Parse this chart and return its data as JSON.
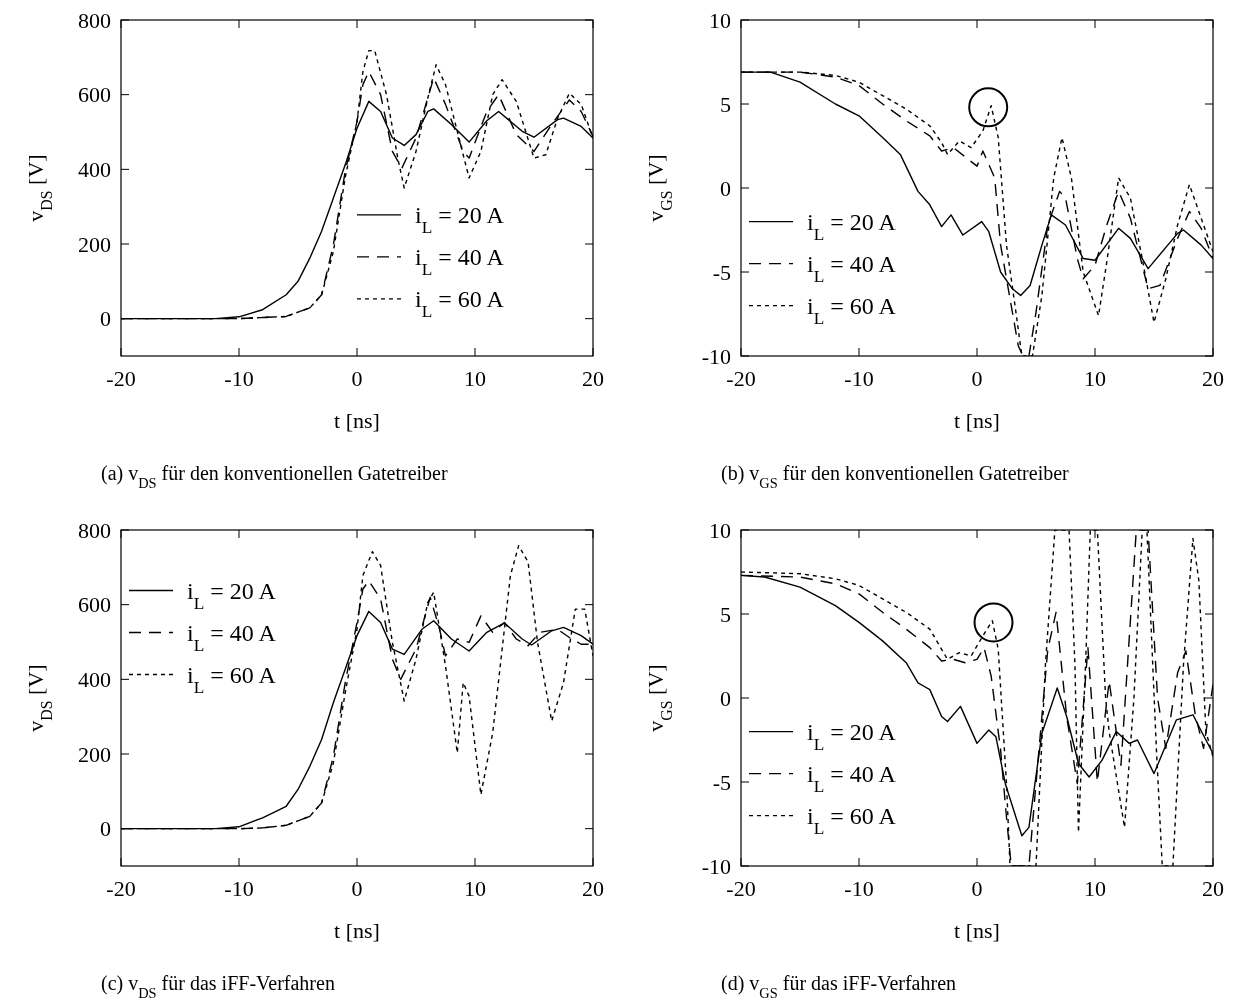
{
  "chart_data": [
    {
      "type": "line",
      "xlabel": "t [ns]",
      "ylabel": "v$_{DS}$ [V]",
      "annotations": [
        "(a) v$_{DS}$ für den konventionellen Gatetreiber"
      ],
      "xlim": [
        -20,
        20
      ],
      "xticks": [
        -20,
        -10,
        0,
        10,
        20
      ],
      "ylim": [
        -100,
        800
      ],
      "yticks": [
        0,
        200,
        400,
        600,
        800
      ],
      "legend": "right",
      "series": [
        {
          "name": "i$_{L}$ = 20 A",
          "color": "#000000",
          "line_style": "solid",
          "x": [
            -20,
            -12,
            -10,
            -8,
            -6,
            -5,
            -4,
            -3,
            -2,
            -1,
            0,
            1,
            2,
            3,
            4,
            5,
            6,
            6.5,
            8,
            9.5,
            11,
            12,
            14,
            15,
            17,
            17.5,
            19,
            20
          ],
          "values": [
            0,
            0,
            5,
            24,
            64,
            100,
            162,
            234,
            323,
            412,
            510,
            582,
            555,
            484,
            464,
            493,
            555,
            562,
            520,
            473,
            530,
            555,
            502,
            486,
            533,
            537,
            515,
            484
          ]
        },
        {
          "name": "i$_{L}$ = 40 A",
          "color": "#000000",
          "line_style": "dashed",
          "x": [
            -20,
            -10,
            -8,
            -6,
            -4,
            -3,
            -2,
            -1,
            0,
            0.5,
            1,
            2,
            3,
            3.8,
            5,
            6.5,
            7.5,
            9,
            9.5,
            11,
            12,
            13.5,
            15,
            16.5,
            18,
            19,
            20
          ],
          "values": [
            0,
            0,
            3,
            6,
            29,
            64,
            198,
            395,
            528,
            627,
            662,
            600,
            448,
            403,
            484,
            645,
            574,
            448,
            430,
            555,
            600,
            493,
            448,
            520,
            586,
            555,
            488
          ]
        },
        {
          "name": "i$_{L}$ = 60 A",
          "color": "#000000",
          "line_style": "dotted",
          "x": [
            -20,
            -10,
            -8,
            -6,
            -4,
            -3,
            -2,
            -1,
            0,
            0.5,
            1,
            1.5,
            2.5,
            3.5,
            4,
            5,
            6,
            6.7,
            7.5,
            9,
            9.5,
            10.5,
            11.5,
            12.3,
            13.5,
            15,
            16,
            17,
            18,
            19,
            20
          ],
          "values": [
            0,
            0,
            3,
            6,
            29,
            64,
            180,
            378,
            528,
            662,
            718,
            718,
            600,
            423,
            350,
            448,
            591,
            680,
            627,
            439,
            377,
            448,
            600,
            640,
            582,
            430,
            439,
            537,
            604,
            574,
            484
          ]
        }
      ]
    },
    {
      "type": "line",
      "xlabel": "t [ns]",
      "ylabel": "v$_{GS}$ [V]",
      "annotations": [
        "(b) v$_{GS}$ für den konventionellen Gatetreiber"
      ],
      "xlim": [
        -20,
        20
      ],
      "xticks": [
        -20,
        -10,
        0,
        10,
        20
      ],
      "ylim": [
        -10,
        10
      ],
      "yticks": [
        -10,
        -5,
        0,
        5,
        10
      ],
      "legend": "left",
      "series": [
        {
          "name": "i$_{L}$ = 20 A",
          "color": "#000000",
          "line_style": "solid",
          "x": [
            -20,
            -17.5,
            -15,
            -12,
            -10,
            -8,
            -6.5,
            -5,
            -4,
            -3,
            -2.2,
            -1.2,
            0.4,
            1,
            2,
            3,
            3.7,
            4.5,
            5.5,
            6.3,
            7.5,
            9,
            10,
            12,
            13,
            14.5,
            17,
            17.5,
            19,
            20
          ],
          "values": [
            6.9,
            6.9,
            6.3,
            5.0,
            4.3,
            3.0,
            2.0,
            -0.2,
            -1.0,
            -2.3,
            -1.6,
            -2.8,
            -2.0,
            -2.6,
            -5.0,
            -6.0,
            -6.4,
            -5.8,
            -3.4,
            -1.6,
            -2.2,
            -4.2,
            -4.3,
            -2.4,
            -3.0,
            -4.8,
            -2.7,
            -2.5,
            -3.4,
            -4.2
          ]
        },
        {
          "name": "i$_{L}$ = 40 A",
          "color": "#000000",
          "line_style": "dashed",
          "x": [
            -20,
            -15,
            -12,
            -10,
            -8,
            -6,
            -4,
            -3,
            -2,
            0,
            0.5,
            1.5,
            2,
            3,
            3.5,
            3.9,
            4.4,
            5,
            6,
            7,
            7.5,
            8.5,
            9,
            10,
            11,
            12,
            13,
            14.5,
            15.5,
            17,
            18,
            19,
            20
          ],
          "values": [
            6.9,
            6.9,
            6.6,
            6.1,
            5.0,
            4.0,
            3.1,
            2.2,
            2.4,
            1.3,
            2.2,
            0.6,
            -3.4,
            -7.4,
            -9.4,
            -10,
            -10,
            -7.4,
            -2.2,
            -0.2,
            -0.6,
            -4.2,
            -5.4,
            -4.6,
            -2.2,
            -0.2,
            -1.8,
            -6.0,
            -5.8,
            -3.0,
            -1.4,
            -2.4,
            -4.2
          ]
        },
        {
          "name": "i$_{L}$ = 60 A",
          "color": "#000000",
          "line_style": "dotted",
          "x": [
            -20,
            -15,
            -12,
            -10,
            -8,
            -6,
            -4,
            -3,
            -2.5,
            -1.5,
            -0.5,
            0.5,
            1.2,
            1.8,
            2.5,
            3.3,
            3.8,
            4.7,
            5.5,
            6.5,
            7.2,
            8,
            9,
            10.3,
            11,
            12,
            13,
            14,
            15,
            16,
            17,
            18,
            19,
            20
          ],
          "values": [
            6.9,
            6.9,
            6.7,
            6.3,
            5.5,
            4.7,
            3.7,
            2.7,
            2.0,
            2.8,
            2.4,
            3.4,
            4.9,
            3.0,
            -3.4,
            -7.4,
            -10,
            -10,
            -6.4,
            0.6,
            3.0,
            0.6,
            -5.0,
            -7.6,
            -4.4,
            0.6,
            -0.6,
            -4.2,
            -8.0,
            -5.4,
            -2.2,
            0.2,
            -1.8,
            -3.8
          ]
        }
      ]
    },
    {
      "type": "line",
      "xlabel": "t [ns]",
      "ylabel": "v$_{DS}$ [V]",
      "annotations": [
        "(c) v$_{DS}$ für das iFF-Verfahren"
      ],
      "xlim": [
        -20,
        20
      ],
      "xticks": [
        -20,
        -10,
        0,
        10,
        20
      ],
      "ylim": [
        -100,
        800
      ],
      "yticks": [
        0,
        200,
        400,
        600,
        800
      ],
      "legend": "top left",
      "series": [
        {
          "name": "i$_{L}$ = 20 A",
          "color": "#000000",
          "line_style": "solid",
          "x": [
            -20,
            -12,
            -10,
            -8,
            -6,
            -5,
            -4,
            -3,
            -2,
            -1,
            0,
            1,
            2,
            3,
            4,
            5.5,
            6.5,
            8,
            9.5,
            11,
            12.5,
            14,
            14.8,
            16.5,
            17.5,
            19,
            20
          ],
          "values": [
            0,
            0,
            5,
            29,
            60,
            105,
            167,
            239,
            338,
            427,
            517,
            582,
            552,
            481,
            467,
            534,
            557,
            508,
            476,
            526,
            551,
            508,
            492,
            530,
            539,
            517,
            494
          ]
        },
        {
          "name": "i$_{L}$ = 40 A",
          "color": "#000000",
          "line_style": "dashed",
          "x": [
            -20,
            -10,
            -8,
            -6,
            -4,
            -3,
            -2,
            -1,
            0,
            0.5,
            1,
            2,
            3,
            3.7,
            5,
            6.2,
            7,
            7.5,
            8.5,
            9.5,
            10.5,
            11.5,
            12.5,
            13.5,
            14.5,
            15.5,
            17,
            18,
            19,
            20
          ],
          "values": [
            0,
            0,
            2,
            9,
            33,
            69,
            194,
            391,
            552,
            642,
            664,
            615,
            454,
            400,
            481,
            620,
            534,
            463,
            508,
            499,
            570,
            526,
            552,
            508,
            490,
            526,
            534,
            512,
            494,
            494
          ]
        },
        {
          "name": "i$_{L}$ = 60 A",
          "color": "#000000",
          "line_style": "dotted",
          "x": [
            -20,
            -10,
            -8,
            -6,
            -4,
            -3,
            -2,
            -1,
            0,
            0.5,
            1.3,
            2,
            3,
            4,
            5,
            6,
            6.5,
            7.5,
            8.5,
            9,
            9.5,
            10.5,
            11.5,
            12.3,
            13,
            13.7,
            14.5,
            15.3,
            16.5,
            17.5,
            18.5,
            19.3,
            20
          ],
          "values": [
            0,
            0,
            2,
            9,
            33,
            69,
            176,
            364,
            534,
            678,
            742,
            705,
            499,
            342,
            454,
            606,
            633,
            436,
            203,
            391,
            355,
            91,
            257,
            481,
            678,
            758,
            714,
            499,
            288,
            391,
            588,
            588,
            463
          ]
        }
      ]
    },
    {
      "type": "line",
      "xlabel": "t [ns]",
      "ylabel": "v$_{GS}$ [V]",
      "annotations": [
        "(d) v$_{GS}$ für das iFF-Verfahren"
      ],
      "xlim": [
        -20,
        20
      ],
      "xticks": [
        -20,
        -10,
        0,
        10,
        20
      ],
      "ylim": [
        -10,
        10
      ],
      "yticks": [
        -10,
        -5,
        0,
        5,
        10
      ],
      "legend": "left",
      "series": [
        {
          "name": "i$_{L}$ = 20 A",
          "color": "#000000",
          "line_style": "solid",
          "x": [
            -20,
            -18,
            -15,
            -12,
            -10,
            -8,
            -6,
            -5,
            -4.5,
            -4,
            -3,
            -2.5,
            -1.4,
            0,
            1,
            1.6,
            2.4,
            3.3,
            3.8,
            4.4,
            5.5,
            6.8,
            7.6,
            8.6,
            9.5,
            10.6,
            11.8,
            12.9,
            13.6,
            15,
            16.9,
            18.3,
            19.1,
            20
          ],
          "values": [
            7.3,
            7.2,
            6.6,
            5.5,
            4.5,
            3.4,
            2.1,
            0.9,
            0.7,
            0.5,
            -1.1,
            -1.4,
            -0.5,
            -2.7,
            -1.9,
            -2.3,
            -5.1,
            -7.1,
            -8.2,
            -7.7,
            -2.1,
            0.6,
            -1.1,
            -3.9,
            -4.7,
            -3.7,
            -2.0,
            -2.7,
            -2.5,
            -4.5,
            -1.3,
            -1.0,
            -2.1,
            -3.3
          ]
        },
        {
          "name": "i$_{L}$ = 40 A",
          "color": "#000000",
          "line_style": "dashed",
          "x": [
            -20,
            -15,
            -12,
            -10,
            -8,
            -6,
            -4,
            -3,
            -2,
            -1,
            0,
            0.6,
            1.2,
            2,
            2.5,
            2.9,
            4.4,
            5,
            6,
            6.7,
            7.6,
            8.5,
            9.4,
            10.2,
            11.2,
            12.2,
            13.5,
            14.5,
            15.3,
            16,
            17,
            17.7,
            18.5,
            19.2,
            20
          ],
          "values": [
            7.3,
            7.2,
            6.8,
            6.2,
            5.1,
            4.1,
            3.0,
            2.2,
            2.3,
            2.1,
            2.3,
            3.0,
            1.3,
            -3.1,
            -7.1,
            -10,
            -10,
            -5.1,
            2.9,
            5.1,
            -1.1,
            -5.1,
            3.0,
            -5.0,
            1.0,
            -4.0,
            10,
            10,
            0.0,
            -3.0,
            1.5,
            2.8,
            -1.0,
            -3.0,
            0.8
          ]
        },
        {
          "name": "i$_{L}$ = 60 A",
          "color": "#000000",
          "line_style": "dotted",
          "x": [
            -20,
            -15,
            -12,
            -10,
            -8,
            -6,
            -4,
            -3,
            -2.5,
            -1.5,
            -0.5,
            0.5,
            1.3,
            1.8,
            2.5,
            2.8,
            5,
            5.8,
            6.6,
            7.8,
            8.3,
            8.6,
            9.2,
            9.6,
            10.2,
            10.9,
            11.2,
            12.5,
            13.3,
            14,
            14.4,
            15.2,
            15.7,
            16.6,
            17.5,
            18.3,
            18.8,
            19.4,
            20
          ],
          "values": [
            7.5,
            7.4,
            7.1,
            6.7,
            5.9,
            5.1,
            4.1,
            2.9,
            2.3,
            2.7,
            2.5,
            3.7,
            4.6,
            2.9,
            -5.1,
            -10,
            -10,
            2.0,
            10,
            10,
            2.0,
            -8.0,
            2.0,
            10,
            10,
            0.0,
            -2.0,
            -7.7,
            0.0,
            10,
            10,
            -3.0,
            -10,
            -10,
            2.0,
            9.5,
            7.0,
            -2.0,
            -3.5
          ]
        }
      ]
    }
  ]
}
